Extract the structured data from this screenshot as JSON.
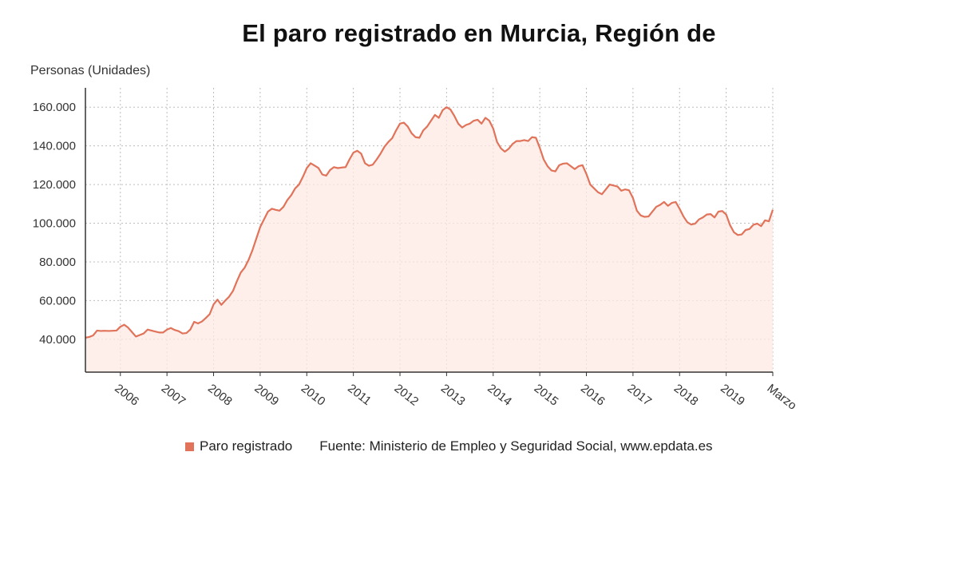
{
  "title": "El paro registrado en Murcia, Región de",
  "colors": {
    "line": "#e0735a",
    "fill": "#fde9e4",
    "grid": "#bdbdbd",
    "axis": "#333333"
  },
  "legend": {
    "series_label": "Paro registrado",
    "source": "Fuente: Ministerio de Empleo y Seguridad Social, www.epdata.es"
  },
  "chart_data": {
    "type": "area",
    "ylabel": "Personas (Unidades)",
    "ylim": [
      23000,
      170000
    ],
    "y_ticks": [
      40000,
      60000,
      80000,
      100000,
      120000,
      140000,
      160000
    ],
    "y_tick_labels": [
      "40.000",
      "60.000",
      "80.000",
      "100.000",
      "120.000",
      "140.000",
      "160.000"
    ],
    "x_tick_labels": [
      "2006",
      "2007",
      "2008",
      "2009",
      "2010",
      "2011",
      "2012",
      "2013",
      "2014",
      "2015",
      "2016",
      "2017",
      "2018",
      "2019",
      "Marzo"
    ],
    "grid": true,
    "legend_position": "bottom",
    "series": [
      {
        "name": "Paro registrado",
        "start": "2005-04",
        "end": "2020-03",
        "values": [
          40800,
          41200,
          42000,
          44500,
          44300,
          44400,
          44300,
          44400,
          44500,
          46500,
          47500,
          46000,
          43700,
          41400,
          42200,
          43000,
          45000,
          44500,
          44000,
          43500,
          43500,
          45000,
          45800,
          44800,
          44200,
          43000,
          43200,
          45000,
          49000,
          48200,
          49200,
          51000,
          53000,
          58000,
          60500,
          57800,
          60000,
          62000,
          65000,
          70000,
          74500,
          77000,
          81000,
          86000,
          92000,
          98000,
          102000,
          106000,
          107500,
          106900,
          106500,
          108500,
          112000,
          114500,
          118000,
          120000,
          124000,
          128500,
          131000,
          129800,
          128600,
          125200,
          124600,
          127500,
          129000,
          128500,
          128800,
          129000,
          133000,
          136500,
          137500,
          136000,
          131000,
          129700,
          130300,
          133000,
          136000,
          139500,
          142000,
          144000,
          148000,
          151500,
          152000,
          150000,
          146500,
          144500,
          144200,
          148000,
          150000,
          153000,
          156000,
          154500,
          158500,
          160000,
          158800,
          155500,
          151500,
          149500,
          150800,
          151500,
          153000,
          153500,
          151500,
          154500,
          153000,
          149000,
          142000,
          138700,
          137000,
          138500,
          141000,
          142500,
          142500,
          143000,
          142500,
          144500,
          144200,
          139000,
          133000,
          129500,
          127300,
          126800,
          130000,
          130800,
          131000,
          129500,
          128000,
          129500,
          130000,
          125500,
          120000,
          118000,
          116000,
          115000,
          117500,
          120000,
          119500,
          119000,
          116800,
          117500,
          117000,
          113000,
          106500,
          104000,
          103300,
          103500,
          106000,
          108500,
          109500,
          111000,
          109000,
          110500,
          111000,
          107500,
          103500,
          100500,
          99300,
          99800,
          102000,
          103000,
          104500,
          104700,
          103000,
          106000,
          106300,
          104500,
          99000,
          95300,
          93900,
          94200,
          96500,
          97000,
          99200,
          99800,
          98500,
          101500,
          101000,
          107000
        ]
      }
    ]
  }
}
